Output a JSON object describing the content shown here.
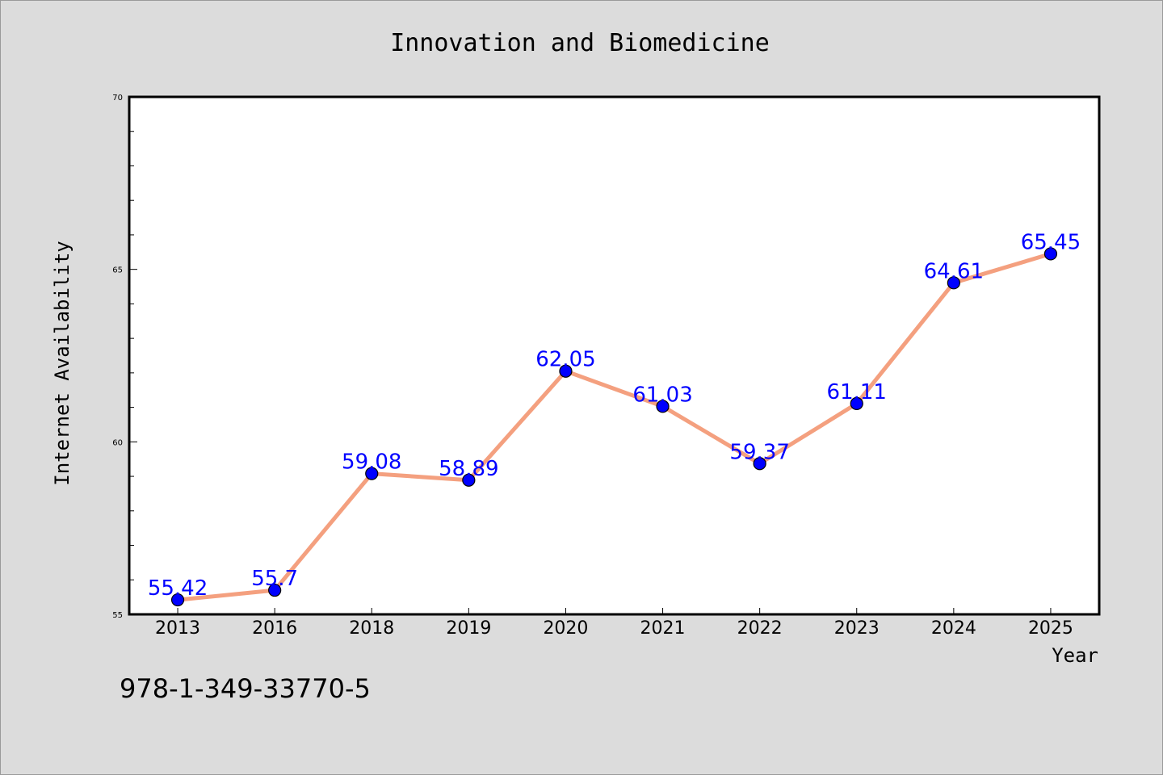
{
  "chart_data": {
    "type": "line",
    "title": "Innovation and Biomedicine",
    "xlabel": "Year",
    "ylabel": "Internet Availability",
    "categories": [
      "2013",
      "2016",
      "2018",
      "2019",
      "2020",
      "2021",
      "2022",
      "2023",
      "2024",
      "2025"
    ],
    "values": [
      55.42,
      55.7,
      59.08,
      58.89,
      62.05,
      61.03,
      59.37,
      61.11,
      64.61,
      65.45
    ],
    "data_labels": [
      "55.42",
      "55.7",
      "59.08",
      "58.89",
      "62.05",
      "61.03",
      "59.37",
      "61.11",
      "64.61",
      "65.45"
    ],
    "ylim": [
      55,
      70
    ],
    "y_ticks": [
      "55",
      "60",
      "65",
      "70"
    ],
    "grid": false,
    "legend": "none",
    "colors": {
      "line": "#f4a07f",
      "marker": "#0000ff",
      "data_label": "#0000ff",
      "background": "#dcdcdc",
      "plot_background": "#ffffff"
    }
  },
  "footer_text": "978-1-349-33770-5"
}
